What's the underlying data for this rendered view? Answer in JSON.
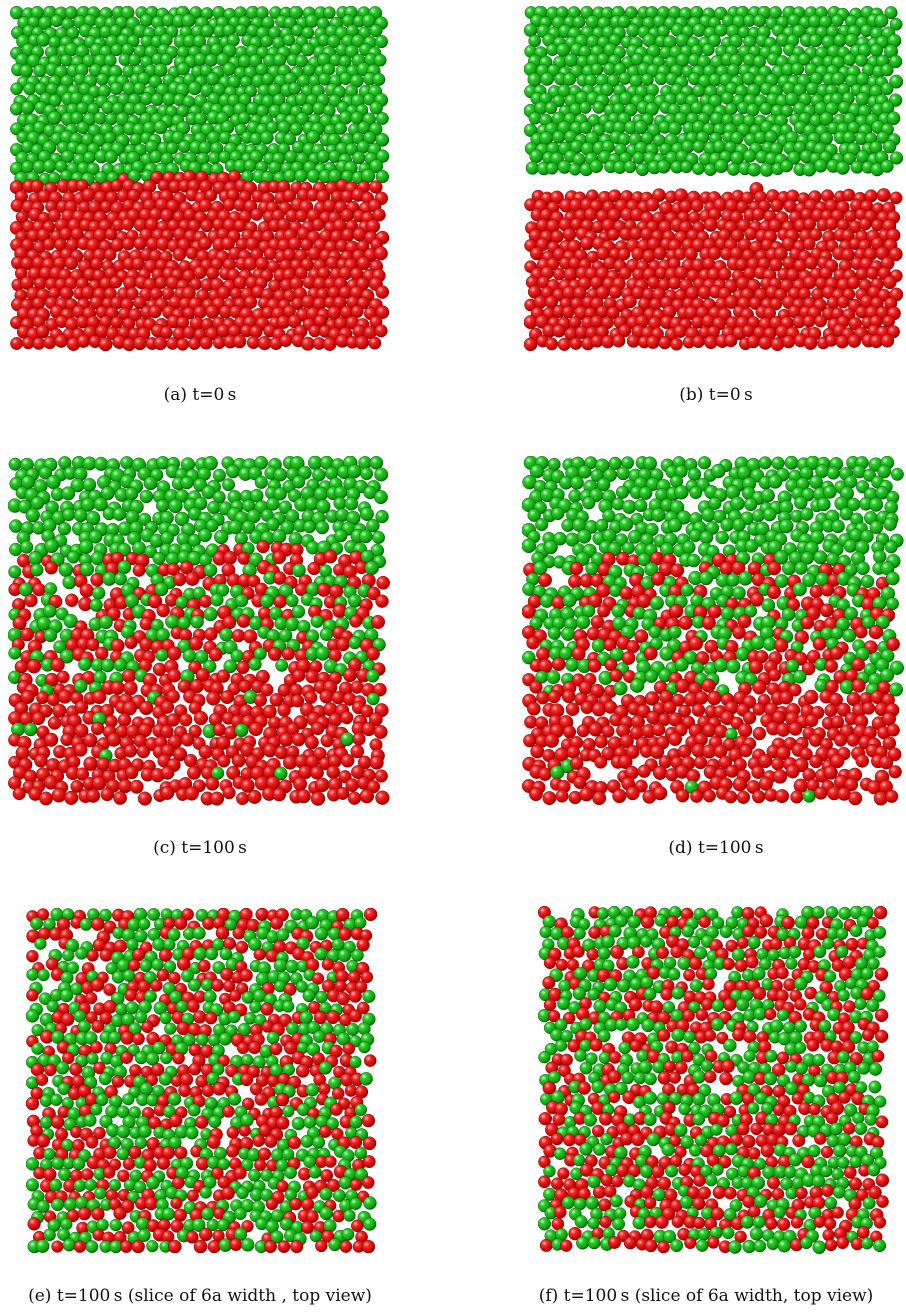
{
  "figure": {
    "colors": {
      "red": "#e01010",
      "green": "#18b018"
    },
    "panels": [
      {
        "id": "a",
        "caption": "(a) t=0 s",
        "kind": "side",
        "shows": "green layer above red layer, sharp interface"
      },
      {
        "id": "b",
        "caption": "(b) t=0 s",
        "kind": "side",
        "shows": "green layer above red layer, separated by a gap"
      },
      {
        "id": "c",
        "caption": "(c) t=100 s",
        "kind": "side",
        "shows": "green top, mixed middle band, red bottom"
      },
      {
        "id": "d",
        "caption": "(d) t=100 s",
        "kind": "side",
        "shows": "green top, mixed middle band, red bottom"
      },
      {
        "id": "e",
        "caption": "(e) t=100 s (slice of 6a width , top view)",
        "kind": "top",
        "shows": "red and green spheres well mixed"
      },
      {
        "id": "f",
        "caption": "(f) t=100 s (slice of 6a width, top view)",
        "kind": "top",
        "shows": "red and green spheres well mixed"
      }
    ]
  }
}
